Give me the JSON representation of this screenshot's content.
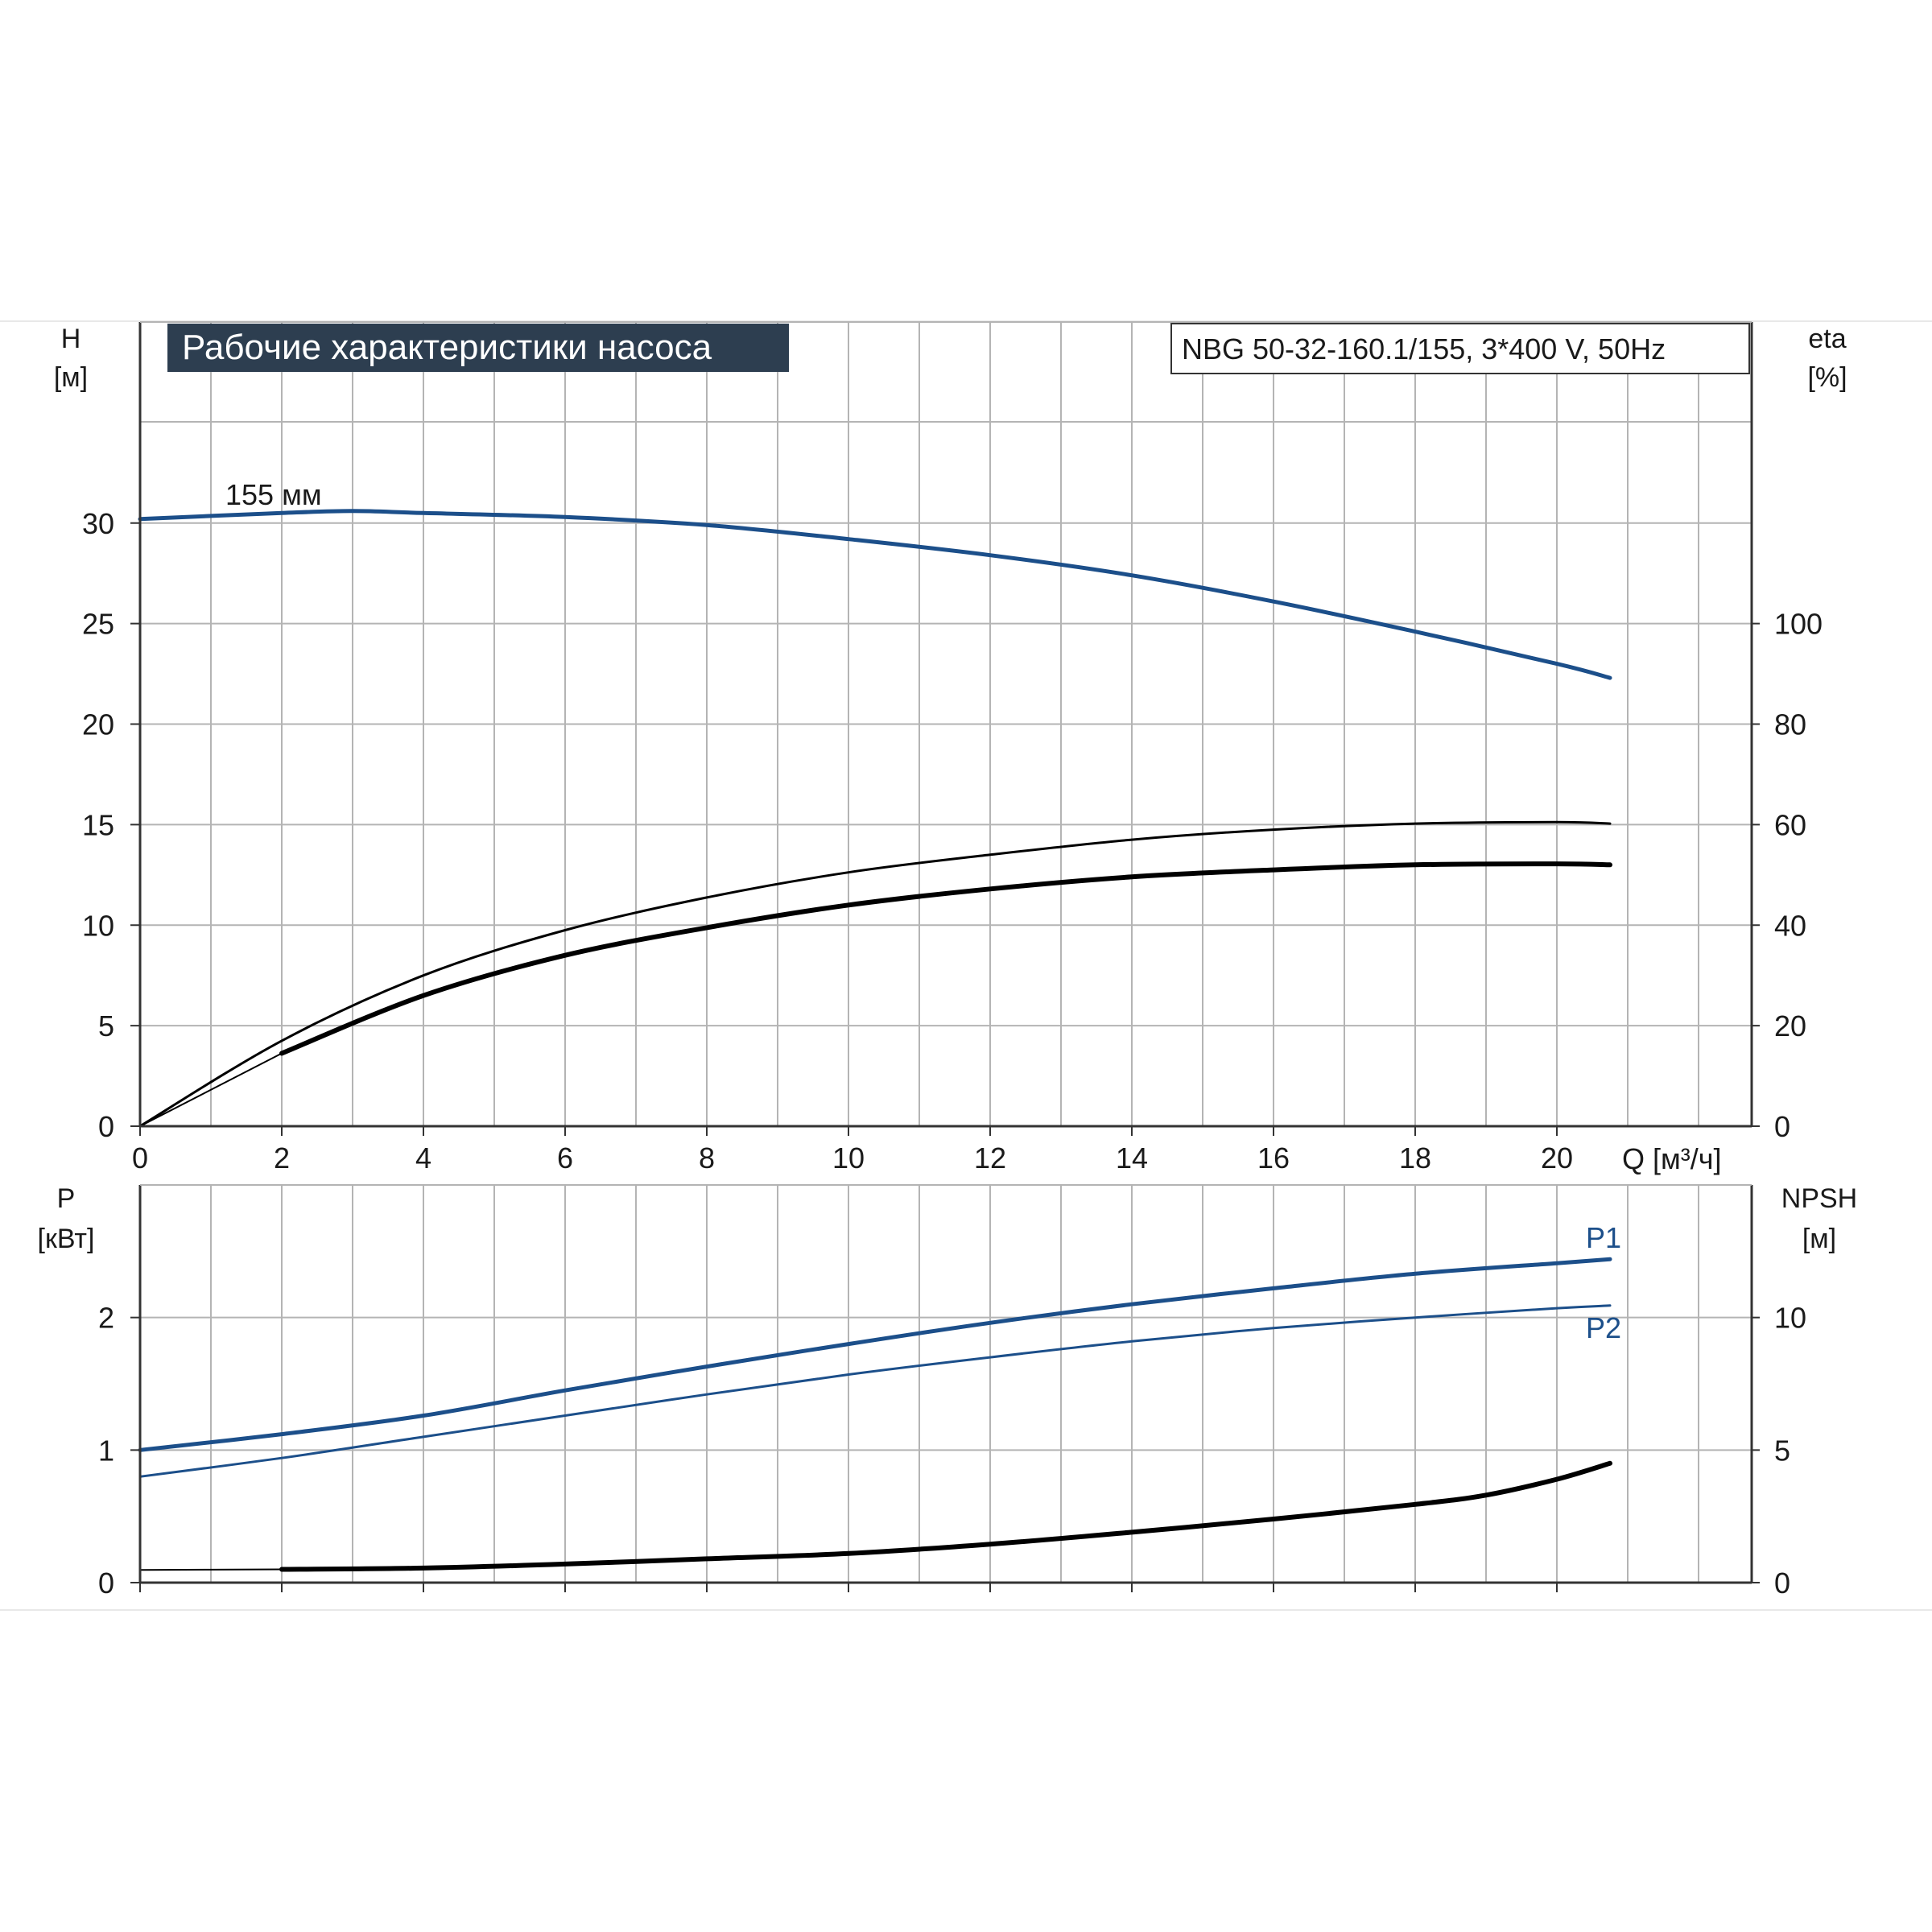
{
  "title": "Рабочие характеристики насоса",
  "model_label": "NBG 50-32-160.1/155, 3*400 V, 50Hz",
  "impeller_label": "155 мм",
  "colors": {
    "blue": "#1c4f8a",
    "black": "#000000",
    "grid": "#b4b4b4",
    "title_bg": "#2d3e50",
    "title_text": "#ffffff"
  },
  "chart_data": [
    {
      "type": "line",
      "name": "top-panel",
      "x_axis": {
        "label": "Q [м³/ч]",
        "range": [
          0,
          22.75
        ],
        "ticks": [
          0,
          2,
          4,
          6,
          8,
          10,
          12,
          14,
          16,
          18,
          20
        ],
        "tick_labels": [
          "0",
          "2",
          "4",
          "6",
          "8",
          "10",
          "12",
          "14",
          "16",
          "18",
          "20"
        ]
      },
      "y_left": {
        "label_line1": "H",
        "label_line2": "[м]",
        "range": [
          0,
          40
        ],
        "ticks": [
          0,
          5,
          10,
          15,
          20,
          25,
          30
        ],
        "tick_labels": [
          "0",
          "5",
          "10",
          "15",
          "20",
          "25",
          "30"
        ]
      },
      "y_right": {
        "label_line1": "eta",
        "label_line2": "[%]",
        "range": [
          0,
          160
        ],
        "ticks": [
          0,
          20,
          40,
          60,
          80,
          100
        ],
        "tick_labels": [
          "0",
          "20",
          "40",
          "60",
          "80",
          "100"
        ]
      },
      "grid": true,
      "series": [
        {
          "axis": "left",
          "color": "blue",
          "width": 5,
          "x": [
            0,
            2,
            3,
            4,
            6,
            8,
            10,
            12,
            14,
            16,
            18,
            20,
            20.75
          ],
          "y": [
            30.2,
            30.5,
            30.6,
            30.5,
            30.3,
            29.9,
            29.2,
            28.4,
            27.4,
            26.1,
            24.6,
            23.0,
            22.3
          ]
        },
        {
          "axis": "right",
          "color": "black",
          "width": 3,
          "x": [
            0,
            2,
            4,
            6,
            8,
            10,
            12,
            14,
            16,
            18,
            20,
            20.75
          ],
          "y": [
            0,
            17,
            30,
            39,
            45.5,
            50.5,
            54,
            57,
            59,
            60.2,
            60.5,
            60.2
          ]
        },
        {
          "axis": "right",
          "color": "black",
          "width": 6,
          "x": [
            2,
            4,
            6,
            8,
            10,
            12,
            14,
            16,
            18,
            20,
            20.75
          ],
          "y": [
            14.5,
            26,
            34,
            39.5,
            44,
            47.2,
            49.6,
            51,
            52,
            52.2,
            52
          ]
        },
        {
          "axis": "right",
          "color": "black",
          "width": 2,
          "x": [
            0,
            2
          ],
          "y": [
            0,
            14.5
          ]
        }
      ]
    },
    {
      "type": "line",
      "name": "bottom-panel",
      "x_axis": {
        "range": [
          0,
          22.75
        ],
        "ticks": [
          0,
          2,
          4,
          6,
          8,
          10,
          12,
          14,
          16,
          18,
          20
        ]
      },
      "y_left": {
        "label_line1": "P",
        "label_line2": "[кВт]",
        "range": [
          0,
          3
        ],
        "ticks": [
          0,
          1,
          2
        ],
        "tick_labels": [
          "0",
          "1",
          "2"
        ]
      },
      "y_right": {
        "label_line1": "NPSH",
        "label_line2": "[м]",
        "range": [
          0,
          15
        ],
        "ticks": [
          0,
          5,
          10
        ],
        "tick_labels": [
          "0",
          "5",
          "10"
        ]
      },
      "grid": true,
      "series": [
        {
          "name": "P1",
          "axis": "left",
          "color": "blue",
          "width": 5,
          "x": [
            0,
            2,
            4,
            6,
            8,
            10,
            12,
            14,
            16,
            18,
            20,
            20.75
          ],
          "y": [
            1.0,
            1.12,
            1.26,
            1.45,
            1.63,
            1.8,
            1.96,
            2.1,
            2.22,
            2.33,
            2.41,
            2.44
          ]
        },
        {
          "name": "P2",
          "axis": "left",
          "color": "blue",
          "width": 3,
          "x": [
            0,
            2,
            4,
            6,
            8,
            10,
            12,
            14,
            16,
            18,
            20,
            20.75
          ],
          "y": [
            0.8,
            0.94,
            1.1,
            1.26,
            1.42,
            1.57,
            1.7,
            1.82,
            1.92,
            2.0,
            2.07,
            2.09
          ]
        },
        {
          "axis": "right",
          "color": "black",
          "width": 6,
          "x": [
            2,
            4,
            6,
            8,
            10,
            12,
            14,
            16,
            18,
            19,
            20,
            20.75
          ],
          "y": [
            0.5,
            0.55,
            0.7,
            0.9,
            1.1,
            1.45,
            1.9,
            2.4,
            2.95,
            3.3,
            3.9,
            4.5
          ]
        },
        {
          "axis": "right",
          "color": "black",
          "width": 2,
          "x": [
            0,
            2
          ],
          "y": [
            0.48,
            0.5
          ]
        }
      ],
      "series_labels": [
        {
          "text": "P1",
          "at_x": 20.75,
          "at_y": 2.6,
          "axis": "left"
        },
        {
          "text": "P2",
          "at_x": 20.75,
          "at_y": 1.92,
          "axis": "left"
        }
      ]
    }
  ]
}
